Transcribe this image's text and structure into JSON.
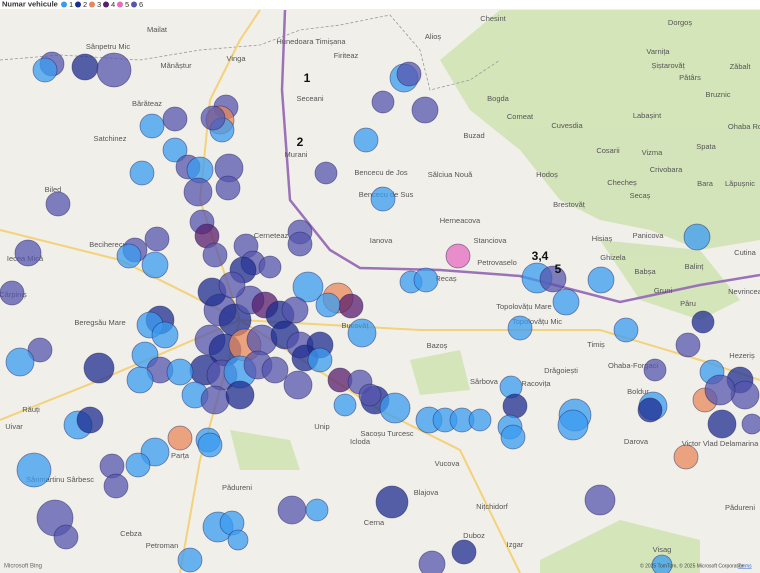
{
  "legend": {
    "title": "Numar vehicule",
    "items": [
      {
        "value": 1,
        "color": "#3a9cf0"
      },
      {
        "value": 2,
        "color": "#1e2d8f"
      },
      {
        "value": 3,
        "color": "#e8885a"
      },
      {
        "value": 4,
        "color": "#5a1e6e"
      },
      {
        "value": 5,
        "color": "#e56bbf"
      },
      {
        "value": 6,
        "color": "#5656ad"
      }
    ]
  },
  "annotations": [
    "1",
    "2",
    "3,4",
    "5"
  ],
  "places": [
    "Chesint",
    "Dorgoș",
    "Mailat",
    "Hunedoara Timișana",
    "Alioș",
    "Sânpetru Mic",
    "Firiteaz",
    "Varnița",
    "Mănăștur",
    "Vinga",
    "Șiștarovăț",
    "Zăbalt",
    "Seceani",
    "Bogda",
    "Pătârs",
    "Bărăteaz",
    "Comeat",
    "Cuvesdia",
    "Labașint",
    "Bruznic",
    "Ohaba Ro",
    "Satchinez",
    "Buzad",
    "Murani",
    "Cosarii",
    "Vizma",
    "Spata",
    "Bencecu de Jos",
    "Sălciua Nouă",
    "Hodoș",
    "Crivobara",
    "Checheș",
    "Bara",
    "Lăpușnic",
    "Biled",
    "Bencecu de Sus",
    "Herneacova",
    "Brestovăț",
    "Secaș",
    "Stanciova",
    "Ianova",
    "Cerneteaz",
    "Hisiaș",
    "Panicova",
    "Beciherecu",
    "Ghizela",
    "Babșa",
    "Balinț",
    "Cutina",
    "Petrovaselo",
    "Recaș",
    "Iecea Mică",
    "Topolovățu Mare",
    "Gruni",
    "Nevrincea",
    "Topolovățu Mic",
    "Pâru",
    "Cârpiniș",
    "Bucovăț",
    "Beregsău Mare",
    "Timiș",
    "Bazoș",
    "Drăgoiești",
    "Ohaba-Forgaci",
    "Hezeriș",
    "Sârbova",
    "Racovița",
    "Boldur",
    "Uivar",
    "Răuți",
    "Unip",
    "Icloda",
    "Sacoșu Turcesc",
    "Darova",
    "Sânmartinu Sârbesc",
    "Parța",
    "Vucova",
    "Pădureni",
    "Blajova",
    "Nițchidorf",
    "Cebza",
    "Petroman",
    "Cerna",
    "Duboz",
    "Izgar",
    "Pădureni",
    "Visag",
    "Victor Vlad Delamarina"
  ],
  "bubbles": [
    6,
    1,
    2,
    6,
    1,
    6,
    6,
    3,
    1,
    6,
    1,
    1,
    6,
    1,
    6,
    6,
    6,
    6,
    4,
    6,
    6,
    6,
    6,
    1,
    1,
    6,
    6,
    6,
    6,
    6,
    6,
    2,
    6,
    1,
    3,
    4,
    1,
    1,
    6,
    2,
    6,
    4,
    2,
    6,
    6,
    2,
    3,
    6,
    2,
    6,
    2,
    2,
    6,
    1,
    6,
    6,
    1,
    6,
    2,
    2,
    6,
    2,
    1,
    1,
    1,
    6,
    1,
    2,
    1,
    2,
    1,
    6,
    4,
    6,
    2,
    1,
    1,
    6,
    6,
    1,
    1,
    2,
    1,
    3,
    1,
    1,
    1,
    6,
    6,
    1,
    6,
    6,
    1,
    1,
    1,
    6,
    1,
    2,
    6,
    2,
    1,
    1,
    6,
    6,
    6,
    1,
    6,
    1,
    1,
    1,
    5,
    1,
    6,
    1,
    1,
    1,
    1,
    1,
    6,
    2,
    6,
    1,
    2,
    1,
    1,
    1,
    2,
    1,
    1,
    1,
    1,
    1,
    1,
    6,
    3,
    2,
    2,
    6,
    1,
    3,
    6,
    6,
    1
  ],
  "footer": {
    "logo": "Microsoft Bing",
    "attribution": "© 2025 TomTom, © 2025 Microsoft Corporation",
    "terms": "Terms"
  }
}
